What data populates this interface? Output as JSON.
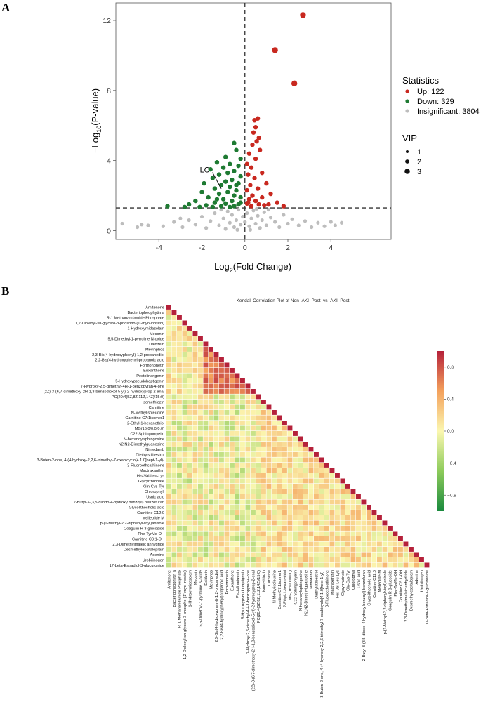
{
  "panels": {
    "a": "A",
    "b": "B"
  },
  "chart_data": [
    {
      "type": "scatter",
      "xlabel": "Log",
      "xlabel_sub": "2",
      "xlabel_rest": "(Fold Change)",
      "ylabel": "−Log",
      "ylabel_sub": "10",
      "ylabel_rest": "(P-value)",
      "xlim": [
        -6,
        6.8
      ],
      "ylim": [
        -0.5,
        13
      ],
      "x_ticks": [
        -4,
        -2,
        0,
        2,
        4
      ],
      "y_ticks": [
        0,
        4,
        8,
        12
      ],
      "x_tick_labels": [
        "-4",
        "-2",
        "0",
        "2",
        "4"
      ],
      "y_tick_labels": [
        "0",
        "4",
        "8",
        "12"
      ],
      "threshold_y": 1.3,
      "threshold_x": 0,
      "annotation": {
        "text": "LC",
        "x": -1.9,
        "y": 3.4,
        "target_x": -1.1,
        "target_y": 2.4
      },
      "legend_statistics": {
        "title": "Statistics",
        "items": [
          {
            "label": "Up: 122",
            "color": "#c8281f"
          },
          {
            "label": "Down: 329",
            "color": "#1e7a32"
          },
          {
            "label": "Insignificant: 3804",
            "color": "#bdbdbd"
          }
        ]
      },
      "legend_vip": {
        "title": "VIP",
        "items": [
          "1",
          "2",
          "3"
        ]
      },
      "series": [
        {
          "name": "Up",
          "color": "#c8281f",
          "points": [
            [
              2.7,
              12.3
            ],
            [
              1.4,
              10.3
            ],
            [
              2.3,
              8.4
            ],
            [
              0.45,
              6.3
            ],
            [
              0.6,
              6.4
            ],
            [
              0.5,
              5.9
            ],
            [
              0.4,
              5.6
            ],
            [
              0.65,
              5.3
            ],
            [
              0.55,
              5.1
            ],
            [
              0.35,
              4.9
            ],
            [
              0.7,
              4.6
            ],
            [
              0.2,
              4.4
            ],
            [
              0.5,
              4.1
            ],
            [
              0.1,
              3.8
            ],
            [
              0.3,
              3.6
            ],
            [
              0.8,
              3.3
            ],
            [
              0.15,
              3.2
            ],
            [
              0.45,
              3.0
            ],
            [
              1.0,
              2.7
            ],
            [
              0.25,
              2.6
            ],
            [
              0.6,
              2.4
            ],
            [
              0.1,
              2.3
            ],
            [
              1.2,
              2.1
            ],
            [
              0.35,
              2.0
            ],
            [
              0.8,
              1.9
            ],
            [
              0.2,
              1.8
            ],
            [
              1.5,
              1.6
            ],
            [
              0.5,
              1.7
            ],
            [
              0.1,
              1.55
            ],
            [
              0.9,
              1.45
            ],
            [
              1.8,
              1.4
            ],
            [
              0.3,
              1.4
            ],
            [
              0.65,
              1.5
            ],
            [
              0.15,
              1.6
            ],
            [
              1.1,
              1.5
            ]
          ]
        },
        {
          "name": "Down",
          "color": "#1e7a32",
          "points": [
            [
              -0.5,
              5.0
            ],
            [
              -0.4,
              4.6
            ],
            [
              -0.9,
              4.2
            ],
            [
              -0.2,
              4.1
            ],
            [
              -1.3,
              3.9
            ],
            [
              -0.7,
              3.8
            ],
            [
              -0.3,
              3.7
            ],
            [
              -1.0,
              3.6
            ],
            [
              -1.6,
              3.5
            ],
            [
              -0.5,
              3.4
            ],
            [
              -0.8,
              3.3
            ],
            [
              -1.2,
              3.2
            ],
            [
              -0.2,
              3.1
            ],
            [
              -1.5,
              3.0
            ],
            [
              -0.6,
              2.9
            ],
            [
              -0.9,
              2.8
            ],
            [
              -1.9,
              2.7
            ],
            [
              -0.3,
              2.7
            ],
            [
              -1.1,
              2.6
            ],
            [
              -0.7,
              2.5
            ],
            [
              -1.4,
              2.4
            ],
            [
              -0.4,
              2.3
            ],
            [
              -2.0,
              2.2
            ],
            [
              -0.8,
              2.2
            ],
            [
              -1.2,
              2.1
            ],
            [
              -0.5,
              2.0
            ],
            [
              -1.7,
              1.9
            ],
            [
              -0.2,
              1.9
            ],
            [
              -1.0,
              1.8
            ],
            [
              -2.3,
              1.7
            ],
            [
              -0.6,
              1.7
            ],
            [
              -1.4,
              1.6
            ],
            [
              -0.9,
              1.55
            ],
            [
              -2.6,
              1.5
            ],
            [
              -0.3,
              1.5
            ],
            [
              -1.8,
              1.45
            ],
            [
              -1.1,
              1.4
            ],
            [
              -0.5,
              1.4
            ],
            [
              -3.6,
              1.4
            ],
            [
              -2.1,
              1.35
            ],
            [
              -0.7,
              1.35
            ],
            [
              -1.5,
              1.35
            ],
            [
              -0.2,
              1.6
            ],
            [
              -2.8,
              1.35
            ],
            [
              -1.3,
              1.8
            ],
            [
              -0.4,
              2.6
            ]
          ]
        },
        {
          "name": "Insignificant",
          "color": "#bdbdbd",
          "points": [
            [
              -5.7,
              0.4
            ],
            [
              -4.5,
              0.3
            ],
            [
              -3.8,
              0.25
            ],
            [
              -3.3,
              0.5
            ],
            [
              -2.9,
              0.2
            ],
            [
              -2.6,
              0.6
            ],
            [
              -2.3,
              0.35
            ],
            [
              -2.0,
              0.8
            ],
            [
              -1.8,
              0.15
            ],
            [
              -1.6,
              0.55
            ],
            [
              -1.4,
              1.0
            ],
            [
              -1.2,
              0.3
            ],
            [
              -1.0,
              0.7
            ],
            [
              -0.9,
              0.1
            ],
            [
              -0.8,
              1.1
            ],
            [
              -0.7,
              0.45
            ],
            [
              -0.6,
              0.9
            ],
            [
              -0.5,
              0.2
            ],
            [
              -0.4,
              0.6
            ],
            [
              -0.3,
              1.2
            ],
            [
              -0.2,
              0.35
            ],
            [
              -0.1,
              0.8
            ],
            [
              0.0,
              0.5
            ],
            [
              0.1,
              1.0
            ],
            [
              0.2,
              0.25
            ],
            [
              0.3,
              0.7
            ],
            [
              0.4,
              1.15
            ],
            [
              0.5,
              0.4
            ],
            [
              0.6,
              0.85
            ],
            [
              0.7,
              0.15
            ],
            [
              0.8,
              0.6
            ],
            [
              0.9,
              1.05
            ],
            [
              1.0,
              0.3
            ],
            [
              1.2,
              0.75
            ],
            [
              1.4,
              0.5
            ],
            [
              1.6,
              0.2
            ],
            [
              1.8,
              0.9
            ],
            [
              2.0,
              0.4
            ],
            [
              2.2,
              0.65
            ],
            [
              2.5,
              0.3
            ],
            [
              2.8,
              0.55
            ],
            [
              3.1,
              0.2
            ],
            [
              3.4,
              0.45
            ],
            [
              3.7,
              0.25
            ],
            [
              4.0,
              0.5
            ],
            [
              4.2,
              0.3
            ],
            [
              4.5,
              0.45
            ],
            [
              -5.0,
              0.2
            ],
            [
              -4.8,
              0.35
            ],
            [
              -3.0,
              0.7
            ],
            [
              1.1,
              1.2
            ],
            [
              -1.1,
              1.2
            ],
            [
              0.55,
              1.25
            ],
            [
              -0.35,
              0.05
            ],
            [
              0.25,
              0.05
            ]
          ]
        }
      ]
    },
    {
      "type": "heatmap",
      "title": "Kendall Correlation Plot of Non_AKI_Post_vs_AKI_Post",
      "colorbar_ticks": [
        0.8,
        0.4,
        0.0,
        -0.4,
        -0.8
      ],
      "colorbar_tick_labels": [
        "0.8",
        "0.4",
        "0.0",
        "−0.4",
        "−0.8"
      ],
      "colorbar_range": [
        -1,
        1
      ],
      "labels": [
        "Amitenone",
        "Bacteriopheophytin a",
        "R-1 Methanandamide Phosphate",
        "1,2-Dioleoyl-sn-glycero-3-phospho-(1'-myo-inositol)",
        "1-Hydroxymidazolam",
        "Meconin",
        "5,5-Dimethyl-1-pyrroline N-oxide",
        "Daidzein",
        "Mevinphos",
        "2,3-Bis(4-hydroxyphenyl)-1,2-propanediol",
        "2,2-Bis(4-hydroxyphenyl)propanoic acid",
        "Formononetin",
        "Euxanthone",
        "Pectolinarigenin",
        "5-Hydroxypseudobaptigenin",
        "7-Hydroxy-2,5-dimethyl-4H-1-benzopyran-4-one",
        "(2Z)-3-(6,7-dimethoxy-2H-1,3-benzodioxol-5-yl)-2-hydroxyprop-2-enal",
        "PC(20:4(5Z,8Z,11Z,14Z)/15:0)",
        "Isomethiozin",
        "Carnitine",
        "N-Methylisoleucine",
        "Carnitine C7:1isomer1",
        "2-Ethyl-1-hexanethiol",
        "MG(16:0/0:0/0:0)",
        "C22 Sphingomyelin",
        "N-hexanoylsphingosine",
        "N2,N2-Dimethylguanosine",
        "Nintedanib",
        "Diethylstilbestrol",
        "3-Buten-2-one, 4-(4-hydroxy-2,2,6-trimethyl-7-oxabicyclo[4.1.0]hept-1-yl)-",
        "3-Fluoroethcathinone",
        "Mactraxanthin",
        "His-Val-Leu-Lys",
        "Glycyrrhizinate",
        "Gln-Cys-Tyr",
        "Chlorophyll",
        "Usnic acid",
        "2-Butyl-3-(3,5-diiodo-4-hydroxy benzoyl) benzofuran",
        "Glycolithocholic acid",
        "Carnitine C12:0",
        "Melleolide M",
        "p-(1-Methyl-2,2-diphenylvinyl)anisole",
        "Coagulin R 3-glucoside",
        "Phe-TyrMe-OH",
        "Carnitine C9:1-OH",
        "2,3-Dimethylmaleic anhydride",
        "Desmethylescitalopram",
        "Adenine",
        "Urobilinogen",
        "17-beta-Estradiol-3-glucuronide"
      ]
    }
  ]
}
